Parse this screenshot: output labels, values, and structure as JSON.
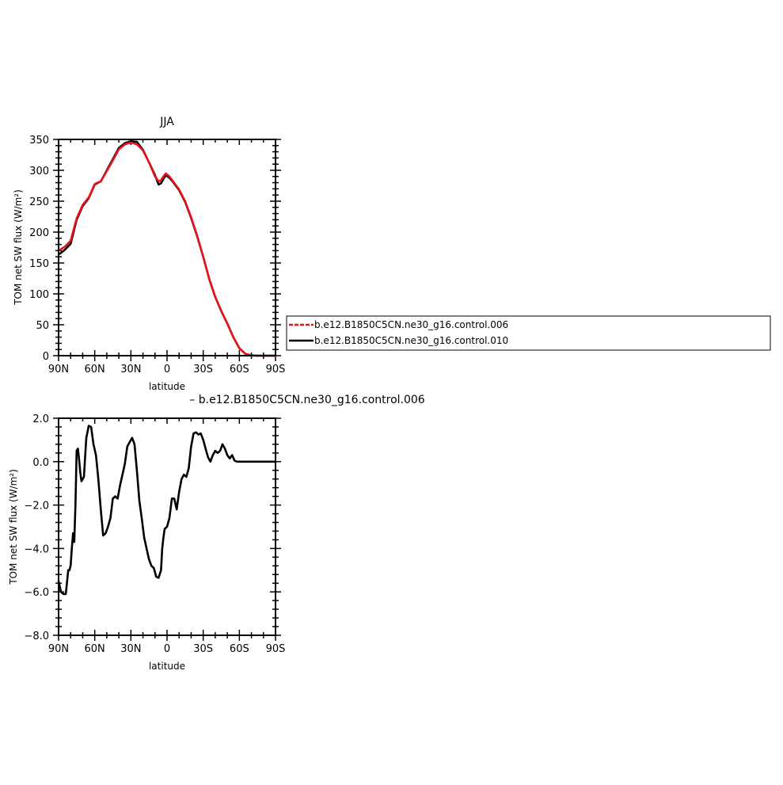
{
  "chart_data": [
    {
      "type": "line",
      "title": "JJA",
      "xlabel": "latitude",
      "ylabel": "TOM net SW flux (W/m²)",
      "xlim": [
        90,
        -90
      ],
      "ylim": [
        0,
        350
      ],
      "x_tick_labels": [
        "90N",
        "60N",
        "30N",
        "0",
        "30S",
        "60S",
        "90S"
      ],
      "y_tick_labels": [
        "0",
        "50",
        "100",
        "150",
        "200",
        "250",
        "300",
        "350"
      ],
      "legend": "right",
      "series": [
        {
          "name": "b.e12.B1850C5CN.ne30_g16.control.006",
          "color": "#e8121a",
          "style": "dashed",
          "x": [
            89,
            85,
            80,
            75,
            70,
            65,
            60,
            55,
            50,
            45,
            40,
            35,
            30,
            25,
            20,
            15,
            10,
            7,
            5,
            3,
            1,
            -2,
            -5,
            -10,
            -15,
            -20,
            -25,
            -30,
            -35,
            -40,
            -45,
            -50,
            -55,
            -60,
            -65,
            -70,
            -75,
            -80,
            -85,
            -90
          ],
          "y": [
            171,
            176,
            186,
            222,
            244,
            256,
            278,
            282,
            299,
            316,
            334,
            342,
            345,
            342,
            332,
            313,
            290,
            282,
            284,
            290,
            295,
            290,
            282,
            269,
            250,
            224,
            194,
            160,
            124,
            95,
            72,
            52,
            30,
            12,
            3,
            0.5,
            0,
            0,
            0,
            0
          ]
        },
        {
          "name": "b.e12.B1850C5CN.ne30_g16.control.010",
          "color": "#000000",
          "style": "solid",
          "x": [
            89,
            85,
            80,
            75,
            70,
            65,
            60,
            55,
            50,
            45,
            40,
            35,
            30,
            25,
            20,
            15,
            10,
            7,
            5,
            3,
            1,
            -2,
            -5,
            -10,
            -15,
            -20,
            -25,
            -30,
            -35,
            -40,
            -45,
            -50,
            -55,
            -60,
            -65,
            -70,
            -75,
            -80,
            -85,
            -90
          ],
          "y": [
            165,
            171,
            181,
            220,
            242,
            255,
            277,
            282,
            300,
            318,
            336,
            344,
            347,
            346,
            333,
            313,
            292,
            277,
            279,
            286,
            292,
            288,
            281,
            268,
            249,
            223,
            193,
            160,
            124,
            95,
            72,
            52,
            30,
            12,
            3,
            0.5,
            0,
            0,
            0,
            0
          ]
        }
      ]
    },
    {
      "type": "line",
      "title": "– b.e12.B1850C5CN.ne30_g16.control.006",
      "xlabel": "latitude",
      "ylabel": "TOM net SW flux (W/m²)",
      "xlim": [
        90,
        -90
      ],
      "ylim": [
        -8,
        2
      ],
      "x_tick_labels": [
        "90N",
        "60N",
        "30N",
        "0",
        "30S",
        "60S",
        "90S"
      ],
      "y_tick_labels": [
        "−8.0",
        "−6.0",
        "−4.0",
        "−2.0",
        "0.0",
        "2.0"
      ],
      "series": [
        {
          "color": "#000000",
          "style": "solid",
          "x": [
            90,
            88,
            86,
            84,
            82,
            81,
            80,
            79,
            78,
            77,
            76,
            75,
            74,
            73,
            72,
            71,
            69,
            67,
            65,
            63,
            61,
            59,
            57,
            55,
            53,
            51,
            49,
            47,
            45,
            43,
            41,
            39,
            37,
            35,
            33,
            31,
            29,
            27,
            25,
            23,
            21,
            19,
            17,
            15,
            13,
            11,
            9,
            7,
            5,
            4,
            3,
            2,
            0,
            -2,
            -4,
            -6,
            -8,
            -10,
            -12,
            -14,
            -16,
            -18,
            -20,
            -22,
            -24,
            -26,
            -28,
            -30,
            -32,
            -34,
            -36,
            -38,
            -40,
            -42,
            -44,
            -46,
            -48,
            -50,
            -52,
            -54,
            -56,
            -58,
            -60,
            -62,
            -64,
            -66,
            -68,
            -70,
            -75,
            -80,
            -85,
            -90
          ],
          "y": [
            -5.5,
            -6.0,
            -6.1,
            -6.1,
            -5.0,
            -5.0,
            -4.8,
            -4.0,
            -3.3,
            -3.7,
            -2.0,
            0.5,
            0.6,
            0.1,
            -0.5,
            -0.9,
            -0.7,
            1.1,
            1.65,
            1.6,
            0.8,
            0.3,
            -0.8,
            -2.2,
            -3.4,
            -3.3,
            -3.0,
            -2.6,
            -1.7,
            -1.6,
            -1.7,
            -1.1,
            -0.6,
            -0.1,
            0.7,
            0.9,
            1.1,
            0.8,
            -0.4,
            -1.8,
            -2.6,
            -3.5,
            -4.0,
            -4.5,
            -4.8,
            -4.9,
            -5.3,
            -5.35,
            -5.0,
            -4.0,
            -3.5,
            -3.1,
            -3.0,
            -2.6,
            -1.7,
            -1.7,
            -2.2,
            -1.4,
            -0.8,
            -0.6,
            -0.7,
            -0.3,
            0.7,
            1.3,
            1.35,
            1.25,
            1.3,
            1.0,
            0.6,
            0.2,
            0.0,
            0.3,
            0.5,
            0.4,
            0.5,
            0.8,
            0.6,
            0.3,
            0.15,
            0.3,
            0.05,
            0.0,
            0.0,
            0.0,
            0.0,
            0.0,
            0.0,
            0.0,
            0.0,
            0.0,
            0.0,
            0.0
          ]
        }
      ]
    }
  ]
}
